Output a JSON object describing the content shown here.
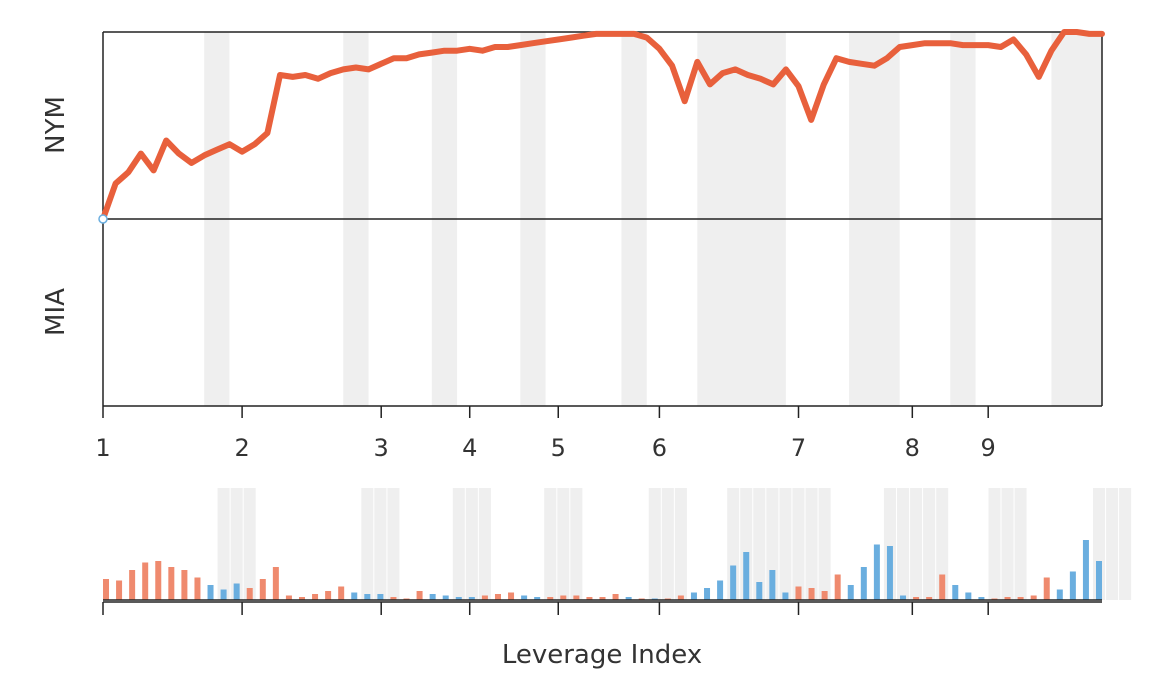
{
  "chart_data": {
    "type": "line",
    "top_panel": {
      "y_labels": {
        "top": "NYM",
        "bottom": "MIA"
      },
      "x_tick_labels": [
        "1",
        "2",
        "3",
        "4",
        "5",
        "6",
        "7",
        "8",
        "9"
      ],
      "x_ticks_at": [
        1,
        12,
        23,
        30,
        37,
        45,
        56,
        65,
        71
      ],
      "x_range": [
        1,
        80
      ],
      "y_range": [
        -1,
        1
      ],
      "line_color": "#e8603c",
      "series": [
        {
          "x": [
            1,
            2,
            3,
            4,
            5,
            6,
            7,
            8,
            9,
            10,
            11,
            12,
            13,
            14,
            15,
            16,
            17,
            18,
            19,
            20,
            21,
            22,
            23,
            24,
            25,
            26,
            27,
            28,
            29,
            30,
            31,
            32,
            33,
            34,
            35,
            36,
            37,
            38,
            39,
            40,
            41,
            42,
            43,
            44,
            45,
            46,
            47,
            48,
            49,
            50,
            51,
            52,
            53,
            54,
            55,
            56,
            57,
            58,
            59,
            60,
            61,
            62,
            63,
            64,
            65,
            66,
            67,
            68,
            69,
            70,
            71,
            72,
            73,
            74,
            75,
            76,
            77,
            78,
            79,
            80
          ],
          "y": [
            0,
            0.19,
            0.25,
            0.35,
            0.26,
            0.42,
            0.35,
            0.3,
            0.34,
            0.37,
            0.4,
            0.36,
            0.4,
            0.46,
            0.77,
            0.76,
            0.77,
            0.75,
            0.78,
            0.8,
            0.81,
            0.8,
            0.83,
            0.86,
            0.86,
            0.88,
            0.89,
            0.9,
            0.9,
            0.91,
            0.9,
            0.92,
            0.92,
            0.93,
            0.94,
            0.95,
            0.96,
            0.97,
            0.98,
            0.99,
            0.99,
            0.99,
            0.99,
            0.97,
            0.91,
            0.82,
            0.63,
            0.84,
            0.72,
            0.78,
            0.8,
            0.77,
            0.75,
            0.72,
            0.8,
            0.71,
            0.53,
            0.72,
            0.86,
            0.84,
            0.83,
            0.82,
            0.86,
            0.92,
            0.93,
            0.94,
            0.94,
            0.94,
            0.93,
            0.93,
            0.93,
            0.92,
            0.96,
            0.88,
            0.76,
            0.9,
            1.0,
            1.0,
            0.99,
            0.99
          ]
        }
      ],
      "shaded_bands": [
        [
          9,
          11
        ],
        [
          20,
          22
        ],
        [
          27,
          29
        ],
        [
          34,
          36
        ],
        [
          42,
          44
        ],
        [
          48,
          55
        ],
        [
          60,
          64
        ],
        [
          68,
          70
        ],
        [
          76,
          80
        ]
      ]
    },
    "bottom_panel": {
      "xlabel": "Leverage Index",
      "bar_colors": {
        "NYM": "#ef8a6e",
        "MIA": "#6aaedf"
      },
      "values": [
        0.14,
        0.13,
        0.2,
        0.25,
        0.26,
        0.22,
        0.2,
        0.15,
        0.1,
        0.07,
        0.11,
        0.08,
        0.14,
        0.22,
        0.03,
        0.02,
        0.04,
        0.06,
        0.09,
        0.05,
        0.04,
        0.04,
        0.02,
        0.01,
        0.06,
        0.04,
        0.03,
        0.02,
        0.02,
        0.03,
        0.04,
        0.05,
        0.03,
        0.02,
        0.02,
        0.03,
        0.03,
        0.02,
        0.02,
        0.04,
        0.02,
        0.01,
        0.01,
        0.01,
        0.03,
        0.05,
        0.08,
        0.13,
        0.23,
        0.32,
        0.12,
        0.2,
        0.05,
        0.09,
        0.08,
        0.06,
        0.17,
        0.1,
        0.22,
        0.37,
        0.36,
        0.03,
        0.02,
        0.02,
        0.17,
        0.1,
        0.05,
        0.02,
        0.01,
        0.02,
        0.02,
        0.03,
        0.15,
        0.07,
        0.19,
        0.4,
        0.26
      ],
      "team": [
        "NYM",
        "NYM",
        "NYM",
        "NYM",
        "NYM",
        "NYM",
        "NYM",
        "NYM",
        "MIA",
        "MIA",
        "MIA",
        "NYM",
        "NYM",
        "NYM",
        "NYM",
        "NYM",
        "NYM",
        "NYM",
        "NYM",
        "MIA",
        "MIA",
        "MIA",
        "NYM",
        "NYM",
        "NYM",
        "MIA",
        "MIA",
        "MIA",
        "MIA",
        "NYM",
        "NYM",
        "NYM",
        "MIA",
        "MIA",
        "NYM",
        "NYM",
        "NYM",
        "NYM",
        "NYM",
        "NYM",
        "MIA",
        "NYM",
        "MIA",
        "NYM",
        "NYM",
        "MIA",
        "MIA",
        "MIA",
        "MIA",
        "MIA",
        "MIA",
        "MIA",
        "MIA",
        "NYM",
        "NYM",
        "NYM",
        "NYM",
        "MIA",
        "MIA",
        "MIA",
        "MIA",
        "MIA",
        "NYM",
        "NYM",
        "NYM",
        "MIA",
        "MIA",
        "MIA",
        "NYM",
        "NYM",
        "NYM",
        "NYM",
        "NYM",
        "MIA",
        "MIA",
        "MIA",
        "MIA"
      ],
      "shaded_bands": [
        [
          9,
          11
        ],
        [
          20,
          22
        ],
        [
          27,
          29
        ],
        [
          34,
          36
        ],
        [
          42,
          44
        ],
        [
          48,
          55
        ],
        [
          60,
          64
        ],
        [
          68,
          70
        ],
        [
          76,
          78
        ]
      ]
    }
  }
}
